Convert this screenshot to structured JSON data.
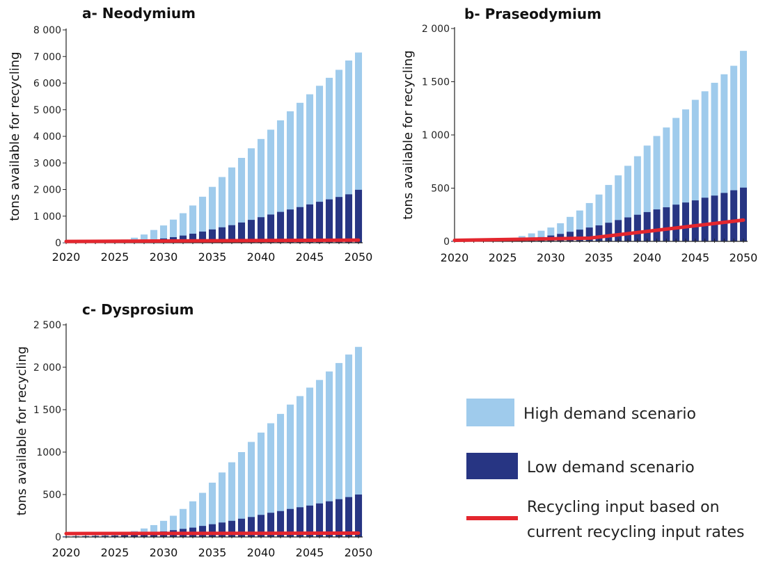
{
  "colors": {
    "high": "#9fcbec",
    "low": "#273583",
    "recycling": "#e3262e",
    "axis": "#222222"
  },
  "legend": {
    "high": "High demand scenario",
    "low": "Low demand scenario",
    "recycling_line1": "Recycling input based on",
    "recycling_line2": "current recycling input rates"
  },
  "chart_data": [
    {
      "type": "bar",
      "title": "a- Neodymium",
      "ylabel": "tons available for recycling",
      "xlabel": "",
      "ylim": [
        0,
        8000
      ],
      "yticks": [
        0,
        1000,
        2000,
        3000,
        4000,
        5000,
        6000,
        7000,
        8000
      ],
      "ytick_labels": [
        "0",
        "1 000",
        "2 000",
        "3 000",
        "4 000",
        "5 000",
        "6 000",
        "7 000",
        "8 000"
      ],
      "xticks": [
        2020,
        2025,
        2030,
        2035,
        2040,
        2045,
        2050
      ],
      "categories": [
        2020,
        2021,
        2022,
        2023,
        2024,
        2025,
        2026,
        2027,
        2028,
        2029,
        2030,
        2031,
        2032,
        2033,
        2034,
        2035,
        2036,
        2037,
        2038,
        2039,
        2040,
        2041,
        2042,
        2043,
        2044,
        2045,
        2046,
        2047,
        2048,
        2049,
        2050
      ],
      "series": [
        {
          "name": "High demand scenario",
          "values": [
            10,
            15,
            20,
            30,
            50,
            80,
            120,
            190,
            310,
            480,
            650,
            870,
            1110,
            1400,
            1730,
            2100,
            2470,
            2830,
            3190,
            3550,
            3900,
            4250,
            4600,
            4940,
            5260,
            5580,
            5900,
            6200,
            6500,
            6850,
            7150
          ]
        },
        {
          "name": "Low demand scenario",
          "values": [
            5,
            8,
            10,
            15,
            20,
            30,
            45,
            65,
            90,
            120,
            160,
            210,
            270,
            340,
            420,
            500,
            580,
            660,
            760,
            860,
            960,
            1060,
            1160,
            1250,
            1340,
            1440,
            1540,
            1630,
            1720,
            1820,
            1990
          ]
        },
        {
          "name": "Recycling input based on current recycling input rates",
          "type": "line",
          "x": [
            2020,
            2050
          ],
          "values": [
            50,
            100
          ]
        }
      ]
    },
    {
      "type": "bar",
      "title": "b- Praseodymium",
      "ylabel": "tons available for recycling",
      "xlabel": "",
      "ylim": [
        0,
        2000
      ],
      "yticks": [
        0,
        500,
        1000,
        1500,
        2000
      ],
      "ytick_labels": [
        "0",
        "500",
        "1 000",
        "1 500",
        "2 000"
      ],
      "xticks": [
        2020,
        2025,
        2030,
        2035,
        2040,
        2045,
        2050
      ],
      "categories": [
        2020,
        2021,
        2022,
        2023,
        2024,
        2025,
        2026,
        2027,
        2028,
        2029,
        2030,
        2031,
        2032,
        2033,
        2034,
        2035,
        2036,
        2037,
        2038,
        2039,
        2040,
        2041,
        2042,
        2043,
        2044,
        2045,
        2046,
        2047,
        2048,
        2049,
        2050
      ],
      "series": [
        {
          "name": "High demand scenario",
          "values": [
            5,
            8,
            10,
            12,
            15,
            20,
            30,
            50,
            75,
            100,
            130,
            170,
            230,
            290,
            360,
            440,
            530,
            620,
            710,
            800,
            900,
            990,
            1070,
            1160,
            1240,
            1330,
            1410,
            1490,
            1570,
            1650,
            1790
          ]
        },
        {
          "name": "Low demand scenario",
          "values": [
            3,
            4,
            5,
            6,
            8,
            10,
            15,
            22,
            30,
            40,
            55,
            70,
            90,
            110,
            130,
            150,
            175,
            200,
            225,
            250,
            275,
            300,
            320,
            345,
            365,
            385,
            410,
            430,
            455,
            480,
            505
          ]
        },
        {
          "name": "Recycling input based on current recycling input rates",
          "type": "line",
          "x": [
            2020,
            2034,
            2050
          ],
          "values": [
            10,
            30,
            200
          ]
        }
      ]
    },
    {
      "type": "bar",
      "title": "c- Dysprosium",
      "ylabel": "tons available for recycling",
      "xlabel": "",
      "ylim": [
        0,
        2500
      ],
      "yticks": [
        0,
        500,
        1000,
        1500,
        2000,
        2500
      ],
      "ytick_labels": [
        "0",
        "500",
        "1000",
        "1 500",
        "2 000",
        "2 500"
      ],
      "xticks": [
        2020,
        2025,
        2030,
        2035,
        2040,
        2045,
        2050
      ],
      "categories": [
        2020,
        2021,
        2022,
        2023,
        2024,
        2025,
        2026,
        2027,
        2028,
        2029,
        2030,
        2031,
        2032,
        2033,
        2034,
        2035,
        2036,
        2037,
        2038,
        2039,
        2040,
        2041,
        2042,
        2043,
        2044,
        2045,
        2046,
        2047,
        2048,
        2049,
        2050
      ],
      "series": [
        {
          "name": "High demand scenario",
          "values": [
            10,
            12,
            15,
            18,
            22,
            30,
            45,
            70,
            100,
            140,
            190,
            250,
            330,
            420,
            520,
            640,
            760,
            880,
            1000,
            1120,
            1230,
            1340,
            1450,
            1560,
            1660,
            1760,
            1850,
            1950,
            2050,
            2150,
            2240
          ]
        },
        {
          "name": "Low demand scenario",
          "values": [
            5,
            6,
            8,
            10,
            12,
            15,
            20,
            28,
            38,
            50,
            65,
            80,
            95,
            110,
            130,
            150,
            170,
            190,
            215,
            235,
            260,
            285,
            305,
            330,
            350,
            370,
            395,
            420,
            445,
            470,
            500
          ]
        },
        {
          "name": "Recycling input based on current recycling input rates",
          "type": "line",
          "x": [
            2020,
            2050
          ],
          "values": [
            40,
            45
          ]
        }
      ]
    }
  ]
}
